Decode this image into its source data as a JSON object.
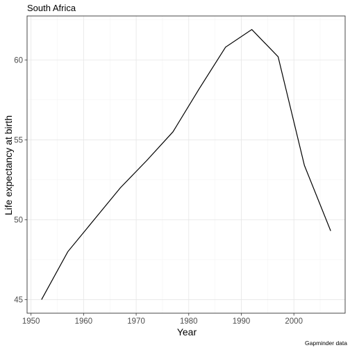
{
  "chart_data": {
    "type": "line",
    "title": "South Africa",
    "xlabel": "Year",
    "ylabel": "Life expectancy at birth",
    "caption": "Gapminder data",
    "x": [
      1952,
      1957,
      1962,
      1967,
      1972,
      1977,
      1982,
      1987,
      1992,
      1997,
      2002,
      2007
    ],
    "series": [
      {
        "values": [
          45.0,
          48.0,
          50.0,
          52.0,
          53.7,
          55.5,
          58.2,
          60.8,
          61.9,
          60.2,
          53.4,
          49.3
        ]
      }
    ],
    "xlim": [
      1949.25,
      2009.75
    ],
    "ylim": [
      44.15,
      62.75
    ],
    "x_ticks": [
      1950,
      1960,
      1970,
      1980,
      1990,
      2000
    ],
    "x_minor_ticks": [
      1955,
      1965,
      1975,
      1985,
      1995,
      2005
    ],
    "y_ticks": [
      45,
      50,
      55,
      60
    ],
    "y_minor_ticks": [
      47.5,
      52.5,
      57.5,
      62.5
    ],
    "grid": true,
    "line_color": "#000000"
  }
}
